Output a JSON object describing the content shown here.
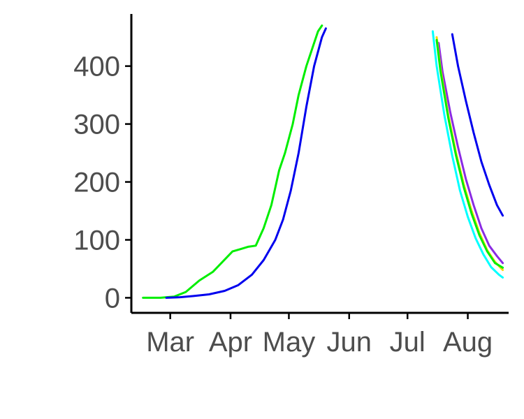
{
  "chart_data": {
    "type": "line",
    "title": "",
    "xlabel": "",
    "ylabel": "",
    "x_axis": {
      "unit": "day-of-year",
      "ticks": [
        {
          "label": "Mar",
          "value": 60
        },
        {
          "label": "Apr",
          "value": 91
        },
        {
          "label": "May",
          "value": 121
        },
        {
          "label": "Jun",
          "value": 152
        },
        {
          "label": "Jul",
          "value": 182
        },
        {
          "label": "Aug",
          "value": 213
        }
      ]
    },
    "y_axis": {
      "ticks": [
        0,
        100,
        200,
        300,
        400
      ]
    },
    "xlim": [
      40,
      234
    ],
    "ylim": [
      -26,
      490
    ],
    "grid": false,
    "legend": "none",
    "series": [
      {
        "color": "#00ee00",
        "x": [
          46,
          55,
          62,
          68,
          75,
          82,
          88,
          92,
          96,
          100,
          104,
          108,
          112,
          114,
          116,
          119,
          123,
          126,
          130,
          134,
          136,
          138
        ],
        "y": [
          0,
          0,
          2,
          10,
          30,
          45,
          66,
          80,
          84,
          88,
          90,
          120,
          160,
          190,
          220,
          250,
          300,
          350,
          400,
          440,
          460,
          470
        ]
      },
      {
        "color": "#0000ee",
        "x": [
          58,
          65,
          72,
          80,
          88,
          95,
          102,
          108,
          114,
          118,
          122,
          126,
          130,
          134,
          138,
          140
        ],
        "y": [
          0,
          1,
          3,
          6,
          12,
          22,
          40,
          65,
          100,
          135,
          185,
          250,
          330,
          400,
          450,
          465
        ]
      },
      {
        "color": "#0000ee",
        "x": [
          205,
          208,
          212,
          216,
          220,
          224,
          228,
          231
        ],
        "y": [
          455,
          400,
          340,
          285,
          235,
          195,
          160,
          142
        ]
      },
      {
        "color": "#8a2be2",
        "x": [
          198,
          200,
          204,
          208,
          212,
          216,
          220,
          224,
          228,
          231
        ],
        "y": [
          440,
          390,
          320,
          260,
          205,
          160,
          120,
          90,
          72,
          60
        ]
      },
      {
        "color": "#ffd700",
        "x": [
          197,
          199,
          203,
          207,
          211,
          215,
          219,
          223,
          227,
          231
        ],
        "y": [
          450,
          395,
          315,
          250,
          195,
          150,
          112,
          82,
          62,
          48
        ]
      },
      {
        "color": "#00ee00",
        "x": [
          197,
          199,
          203,
          207,
          211,
          215,
          219,
          223,
          227,
          231
        ],
        "y": [
          445,
          390,
          310,
          245,
          190,
          145,
          108,
          80,
          60,
          52
        ]
      },
      {
        "color": "#00ffff",
        "x": [
          195,
          197,
          201,
          205,
          209,
          213,
          217,
          221,
          225,
          229,
          231
        ],
        "y": [
          460,
          400,
          315,
          245,
          185,
          140,
          103,
          75,
          53,
          40,
          35
        ]
      }
    ]
  }
}
